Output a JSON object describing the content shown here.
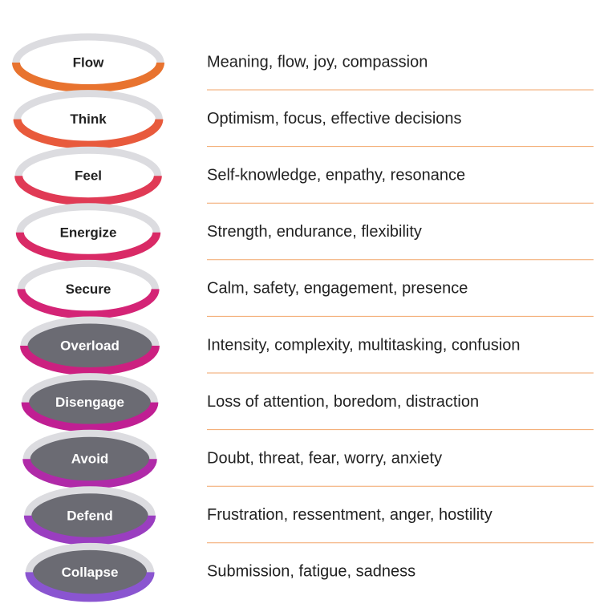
{
  "levels": [
    {
      "label": "Flow",
      "description": "Meaning, flow, joy, compassion"
    },
    {
      "label": "Think",
      "description": "Optimism, focus, effective decisions"
    },
    {
      "label": "Feel",
      "description": "Self-knowledge, enpathy, resonance"
    },
    {
      "label": "Energize",
      "description": "Strength, endurance, flexibility"
    },
    {
      "label": "Secure",
      "description": "Calm, safety, engagement, presence"
    },
    {
      "label": "Overload",
      "description": "Intensity, complexity, multitasking, confusion"
    },
    {
      "label": "Disengage",
      "description": "Loss of attention, boredom, distraction"
    },
    {
      "label": "Avoid",
      "description": "Doubt, threat, fear, worry, anxiety"
    },
    {
      "label": "Defend",
      "description": "Frustration, ressentment, anger, hostility"
    },
    {
      "label": "Collapse",
      "description": "Submission, fatigue, sadness"
    }
  ]
}
